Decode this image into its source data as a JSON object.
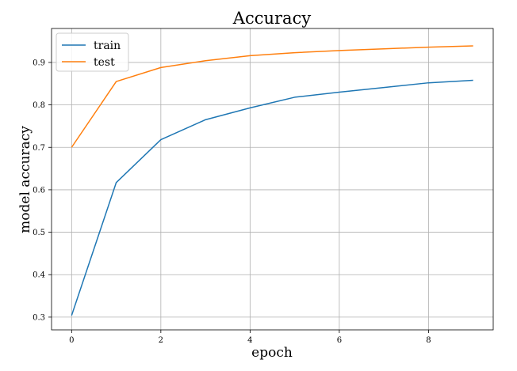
{
  "chart_data": {
    "type": "line",
    "title": "Accuracy",
    "xlabel": "epoch",
    "ylabel": "model accuracy",
    "x": [
      0,
      1,
      2,
      3,
      4,
      5,
      6,
      7,
      8,
      9
    ],
    "xlim": [
      -0.45,
      9.45
    ],
    "ylim": [
      0.27,
      0.98
    ],
    "xticks": [
      0,
      2,
      4,
      6,
      8
    ],
    "yticks": [
      0.3,
      0.4,
      0.5,
      0.6,
      0.7,
      0.8,
      0.9
    ],
    "grid": true,
    "legend_position": "top-left",
    "series": [
      {
        "name": "train",
        "color": "#1f77b4",
        "values": [
          0.304,
          0.617,
          0.718,
          0.765,
          0.793,
          0.818,
          0.83,
          0.841,
          0.852,
          0.858
        ]
      },
      {
        "name": "test",
        "color": "#ff7f0e",
        "values": [
          0.7,
          0.855,
          0.888,
          0.904,
          0.916,
          0.923,
          0.928,
          0.932,
          0.936,
          0.939
        ]
      }
    ]
  }
}
